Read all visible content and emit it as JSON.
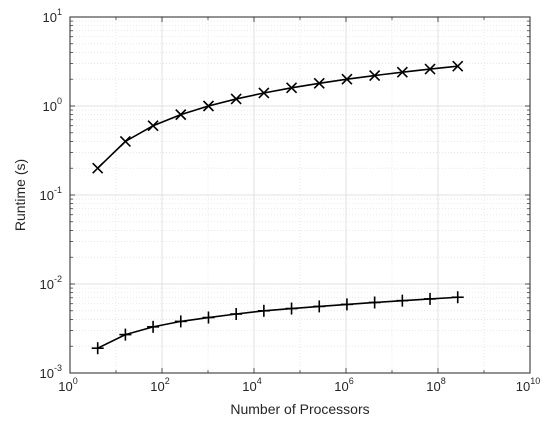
{
  "chart_data": {
    "type": "line",
    "title": "",
    "xlabel": "Number of Processors",
    "ylabel": "Runtime (s)",
    "xscale": "log",
    "yscale": "log",
    "xlim": [
      1,
      10000000000
    ],
    "ylim": [
      0.001,
      10
    ],
    "grid": true,
    "minor_grid": true,
    "legend": "none",
    "line_color": "#000000",
    "grid_color": "#d9d9d9",
    "x_ticks": [
      {
        "base": "10",
        "exp": "0",
        "value": 1
      },
      {
        "base": "10",
        "exp": "2",
        "value": 100
      },
      {
        "base": "10",
        "exp": "4",
        "value": 10000
      },
      {
        "base": "10",
        "exp": "6",
        "value": 1000000
      },
      {
        "base": "10",
        "exp": "8",
        "value": 100000000
      },
      {
        "base": "10",
        "exp": "10",
        "value": 10000000000
      }
    ],
    "y_ticks": [
      {
        "base": "10",
        "exp": "-3",
        "value": 0.001
      },
      {
        "base": "10",
        "exp": "-2",
        "value": 0.01
      },
      {
        "base": "10",
        "exp": "-1",
        "value": 0.1
      },
      {
        "base": "10",
        "exp": "0",
        "value": 1
      },
      {
        "base": "10",
        "exp": "1",
        "value": 10
      }
    ],
    "x": [
      4,
      16,
      64,
      256,
      1024,
      4096,
      16384,
      65536,
      262144,
      1048576,
      4194304,
      16777216,
      67108864,
      268435456
    ],
    "series": [
      {
        "marker": "x",
        "values": [
          0.2,
          0.4,
          0.6,
          0.8,
          1.0,
          1.2,
          1.4,
          1.6,
          1.8,
          2.0,
          2.2,
          2.4,
          2.6,
          2.8
        ]
      },
      {
        "marker": "+",
        "values": [
          0.0019,
          0.0027,
          0.0033,
          0.0038,
          0.0042,
          0.0046,
          0.005,
          0.0053,
          0.0056,
          0.0059,
          0.0062,
          0.0065,
          0.0068,
          0.0071
        ]
      }
    ]
  }
}
